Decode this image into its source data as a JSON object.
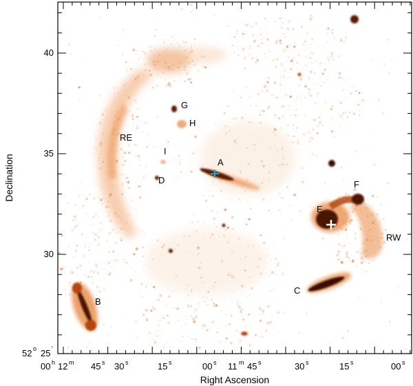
{
  "image": {
    "title": "",
    "x_axis": {
      "label": "Right Ascension",
      "tick_labels": [
        {
          "hours": "00",
          "minutes": "12",
          "seconds": "",
          "show_h": true,
          "show_m": true
        },
        {
          "text": "45",
          "sup": "s"
        },
        {
          "text": "30",
          "sup": "s"
        },
        {
          "text": "15",
          "sup": "s"
        },
        {
          "text": "00",
          "sup": "s"
        },
        {
          "hours": "",
          "minutes": "11",
          "seconds": "45",
          "show_h": false,
          "show_m": true
        },
        {
          "text": "30",
          "sup": "s"
        },
        {
          "text": "15",
          "sup": "s"
        },
        {
          "text": "00",
          "sup": "s"
        }
      ],
      "first_label_prefix": "00",
      "first_label_h": "h",
      "first_label_min": "12",
      "first_label_m": "m",
      "mid_label_min": "11",
      "mid_label_m": "m",
      "mid_label_sec": "45",
      "mid_label_s": "s"
    },
    "y_axis": {
      "label": "Declination",
      "tick_labels": [
        "40",
        "35",
        "30"
      ],
      "bottom_label_deg": "52",
      "bottom_label_deg_sup": "o",
      "bottom_label_min": "25",
      "bottom_label_min_sup": "'"
    },
    "source_labels": [
      "A",
      "B",
      "C",
      "D",
      "E",
      "F",
      "G",
      "H",
      "I",
      "RE",
      "RW"
    ],
    "colormap": {
      "background": "#ffffff",
      "faint": "#f4c9a4",
      "mid": "#e88a45",
      "bright": "#b5470e",
      "peak": "#2a0a02"
    },
    "markers": [
      {
        "name": "core-A",
        "color": "#1aa7d6",
        "symbol": "+"
      },
      {
        "name": "core-E",
        "color": "#ffffff",
        "symbol": "+"
      }
    ]
  }
}
